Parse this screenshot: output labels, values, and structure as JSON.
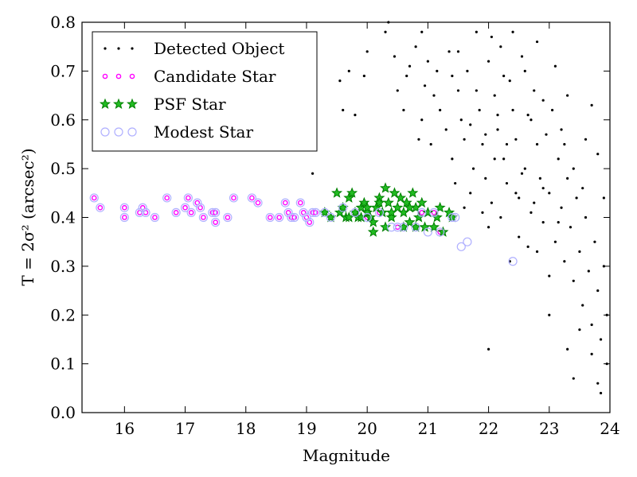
{
  "chart_data": {
    "type": "scatter",
    "xlabel": "Magnitude",
    "ylabel": "T = 2σ² (arcsec²)",
    "xlim": [
      15.3,
      24.0
    ],
    "ylim": [
      0.0,
      0.8
    ],
    "xticks": [
      "16",
      "17",
      "18",
      "19",
      "20",
      "21",
      "22",
      "23",
      "24"
    ],
    "yticks": [
      "0.0",
      "0.1",
      "0.2",
      "0.3",
      "0.4",
      "0.5",
      "0.6",
      "0.7",
      "0.8"
    ],
    "grid": false,
    "legend_position": "top-left",
    "series": [
      {
        "name": "Detected Object",
        "marker": "dot",
        "color": "#000000",
        "points": [
          [
            19.1,
            0.49
          ],
          [
            19.55,
            0.68
          ],
          [
            19.7,
            0.7
          ],
          [
            19.8,
            0.61
          ],
          [
            19.95,
            0.69
          ],
          [
            20.0,
            0.74
          ],
          [
            19.6,
            0.62
          ],
          [
            20.3,
            0.78
          ],
          [
            20.35,
            0.8
          ],
          [
            20.45,
            0.73
          ],
          [
            20.5,
            0.66
          ],
          [
            20.6,
            0.62
          ],
          [
            20.65,
            0.69
          ],
          [
            20.7,
            0.71
          ],
          [
            20.8,
            0.75
          ],
          [
            20.85,
            0.56
          ],
          [
            20.9,
            0.6
          ],
          [
            20.95,
            0.67
          ],
          [
            21.0,
            0.72
          ],
          [
            21.05,
            0.55
          ],
          [
            21.1,
            0.65
          ],
          [
            21.15,
            0.7
          ],
          [
            21.2,
            0.62
          ],
          [
            21.3,
            0.58
          ],
          [
            21.35,
            0.74
          ],
          [
            21.4,
            0.52
          ],
          [
            21.45,
            0.47
          ],
          [
            21.5,
            0.66
          ],
          [
            21.55,
            0.6
          ],
          [
            21.6,
            0.56
          ],
          [
            21.65,
            0.7
          ],
          [
            21.7,
            0.45
          ],
          [
            21.75,
            0.5
          ],
          [
            21.8,
            0.78
          ],
          [
            21.85,
            0.62
          ],
          [
            21.9,
            0.55
          ],
          [
            21.95,
            0.48
          ],
          [
            22.0,
            0.72
          ],
          [
            22.05,
            0.43
          ],
          [
            22.1,
            0.65
          ],
          [
            22.15,
            0.58
          ],
          [
            22.2,
            0.75
          ],
          [
            22.25,
            0.52
          ],
          [
            22.3,
            0.47
          ],
          [
            22.35,
            0.68
          ],
          [
            22.4,
            0.62
          ],
          [
            22.45,
            0.56
          ],
          [
            22.5,
            0.44
          ],
          [
            22.55,
            0.73
          ],
          [
            22.6,
            0.5
          ],
          [
            22.65,
            0.61
          ],
          [
            22.7,
            0.41
          ],
          [
            22.75,
            0.66
          ],
          [
            22.8,
            0.55
          ],
          [
            22.85,
            0.48
          ],
          [
            22.9,
            0.39
          ],
          [
            22.95,
            0.57
          ],
          [
            23.0,
            0.45
          ],
          [
            23.05,
            0.62
          ],
          [
            23.1,
            0.35
          ],
          [
            23.15,
            0.52
          ],
          [
            23.2,
            0.42
          ],
          [
            23.25,
            0.31
          ],
          [
            23.3,
            0.48
          ],
          [
            23.35,
            0.38
          ],
          [
            23.4,
            0.27
          ],
          [
            23.45,
            0.44
          ],
          [
            23.5,
            0.33
          ],
          [
            23.55,
            0.22
          ],
          [
            23.6,
            0.4
          ],
          [
            23.65,
            0.29
          ],
          [
            23.7,
            0.18
          ],
          [
            23.75,
            0.35
          ],
          [
            23.8,
            0.25
          ],
          [
            23.85,
            0.15
          ],
          [
            23.9,
            0.3
          ],
          [
            23.95,
            0.2
          ],
          [
            22.0,
            0.13
          ],
          [
            23.3,
            0.13
          ],
          [
            23.4,
            0.07
          ],
          [
            23.8,
            0.06
          ],
          [
            23.85,
            0.04
          ],
          [
            23.95,
            0.1
          ],
          [
            23.7,
            0.12
          ],
          [
            23.0,
            0.2
          ],
          [
            23.5,
            0.17
          ],
          [
            22.3,
            0.55
          ],
          [
            22.6,
            0.7
          ],
          [
            22.1,
            0.52
          ],
          [
            22.4,
            0.78
          ],
          [
            22.7,
            0.6
          ],
          [
            22.2,
            0.4
          ],
          [
            22.5,
            0.36
          ],
          [
            22.8,
            0.33
          ],
          [
            23.0,
            0.28
          ],
          [
            22.9,
            0.64
          ],
          [
            23.2,
            0.58
          ],
          [
            23.4,
            0.5
          ],
          [
            23.6,
            0.56
          ],
          [
            23.9,
            0.44
          ],
          [
            23.7,
            0.63
          ],
          [
            23.8,
            0.53
          ],
          [
            21.9,
            0.41
          ],
          [
            21.6,
            0.42
          ],
          [
            22.0,
            0.38
          ],
          [
            22.35,
            0.31
          ],
          [
            22.65,
            0.34
          ],
          [
            21.8,
            0.66
          ],
          [
            21.5,
            0.74
          ],
          [
            20.9,
            0.78
          ],
          [
            22.8,
            0.76
          ],
          [
            23.1,
            0.71
          ],
          [
            23.3,
            0.65
          ],
          [
            22.15,
            0.61
          ],
          [
            22.55,
            0.49
          ],
          [
            22.45,
            0.45
          ],
          [
            21.7,
            0.59
          ],
          [
            22.9,
            0.46
          ],
          [
            23.15,
            0.39
          ],
          [
            22.25,
            0.69
          ],
          [
            21.95,
            0.57
          ],
          [
            22.75,
            0.43
          ],
          [
            23.55,
            0.46
          ],
          [
            23.25,
            0.55
          ],
          [
            22.05,
            0.77
          ],
          [
            21.4,
            0.69
          ]
        ]
      },
      {
        "name": "Candidate Star",
        "marker": "circle",
        "color": "#ff00ff",
        "points": [
          [
            15.5,
            0.44
          ],
          [
            15.6,
            0.42
          ],
          [
            16.0,
            0.42
          ],
          [
            16.0,
            0.4
          ],
          [
            16.25,
            0.41
          ],
          [
            16.3,
            0.42
          ],
          [
            16.35,
            0.41
          ],
          [
            16.5,
            0.4
          ],
          [
            16.7,
            0.44
          ],
          [
            16.85,
            0.41
          ],
          [
            17.0,
            0.42
          ],
          [
            17.05,
            0.44
          ],
          [
            17.1,
            0.41
          ],
          [
            17.2,
            0.43
          ],
          [
            17.25,
            0.42
          ],
          [
            17.3,
            0.4
          ],
          [
            17.45,
            0.41
          ],
          [
            17.5,
            0.41
          ],
          [
            17.5,
            0.39
          ],
          [
            17.7,
            0.4
          ],
          [
            17.8,
            0.44
          ],
          [
            18.1,
            0.44
          ],
          [
            18.2,
            0.43
          ],
          [
            18.4,
            0.4
          ],
          [
            18.55,
            0.4
          ],
          [
            18.65,
            0.43
          ],
          [
            18.7,
            0.41
          ],
          [
            18.75,
            0.4
          ],
          [
            18.8,
            0.4
          ],
          [
            18.9,
            0.43
          ],
          [
            18.95,
            0.41
          ],
          [
            19.0,
            0.4
          ],
          [
            19.05,
            0.39
          ],
          [
            19.1,
            0.41
          ],
          [
            19.15,
            0.41
          ],
          [
            20.0,
            0.4
          ],
          [
            20.2,
            0.41
          ],
          [
            20.5,
            0.38
          ],
          [
            20.9,
            0.41
          ],
          [
            21.1,
            0.41
          ],
          [
            21.2,
            0.37
          ]
        ]
      },
      {
        "name": "PSF Star",
        "marker": "star",
        "color": "#008000",
        "points": [
          [
            19.3,
            0.41
          ],
          [
            19.4,
            0.4
          ],
          [
            19.5,
            0.45
          ],
          [
            19.55,
            0.41
          ],
          [
            19.6,
            0.42
          ],
          [
            19.65,
            0.4
          ],
          [
            19.7,
            0.44
          ],
          [
            19.75,
            0.45
          ],
          [
            19.8,
            0.41
          ],
          [
            19.85,
            0.4
          ],
          [
            19.9,
            0.42
          ],
          [
            19.95,
            0.43
          ],
          [
            20.0,
            0.41
          ],
          [
            20.05,
            0.4
          ],
          [
            20.1,
            0.39
          ],
          [
            20.15,
            0.42
          ],
          [
            20.2,
            0.44
          ],
          [
            20.25,
            0.41
          ],
          [
            20.3,
            0.46
          ],
          [
            20.35,
            0.43
          ],
          [
            20.4,
            0.4
          ],
          [
            20.45,
            0.45
          ],
          [
            20.5,
            0.42
          ],
          [
            20.55,
            0.44
          ],
          [
            20.6,
            0.41
          ],
          [
            20.65,
            0.43
          ],
          [
            20.7,
            0.39
          ],
          [
            20.75,
            0.45
          ],
          [
            20.8,
            0.42
          ],
          [
            20.85,
            0.4
          ],
          [
            20.9,
            0.43
          ],
          [
            20.95,
            0.38
          ],
          [
            21.0,
            0.41
          ],
          [
            21.1,
            0.38
          ],
          [
            21.15,
            0.4
          ],
          [
            21.2,
            0.42
          ],
          [
            21.25,
            0.37
          ],
          [
            21.35,
            0.41
          ],
          [
            21.4,
            0.4
          ],
          [
            20.1,
            0.37
          ],
          [
            20.3,
            0.38
          ],
          [
            20.6,
            0.38
          ],
          [
            19.9,
            0.4
          ],
          [
            20.4,
            0.41
          ],
          [
            20.7,
            0.42
          ],
          [
            20.2,
            0.43
          ],
          [
            19.7,
            0.4
          ],
          [
            20.8,
            0.38
          ],
          [
            20.0,
            0.42
          ]
        ]
      },
      {
        "name": "Modest Star",
        "marker": "open-circle",
        "color": "#b0b0ff",
        "points": [
          [
            15.5,
            0.44
          ],
          [
            15.6,
            0.42
          ],
          [
            16.0,
            0.42
          ],
          [
            16.0,
            0.4
          ],
          [
            16.25,
            0.41
          ],
          [
            16.3,
            0.42
          ],
          [
            16.35,
            0.41
          ],
          [
            16.5,
            0.4
          ],
          [
            16.7,
            0.44
          ],
          [
            16.85,
            0.41
          ],
          [
            17.0,
            0.42
          ],
          [
            17.05,
            0.44
          ],
          [
            17.1,
            0.41
          ],
          [
            17.2,
            0.43
          ],
          [
            17.25,
            0.42
          ],
          [
            17.3,
            0.4
          ],
          [
            17.45,
            0.41
          ],
          [
            17.5,
            0.41
          ],
          [
            17.5,
            0.39
          ],
          [
            17.7,
            0.4
          ],
          [
            17.8,
            0.44
          ],
          [
            18.1,
            0.44
          ],
          [
            18.2,
            0.43
          ],
          [
            18.4,
            0.4
          ],
          [
            18.55,
            0.4
          ],
          [
            18.65,
            0.43
          ],
          [
            18.7,
            0.41
          ],
          [
            18.75,
            0.4
          ],
          [
            18.8,
            0.4
          ],
          [
            18.9,
            0.43
          ],
          [
            18.95,
            0.41
          ],
          [
            19.0,
            0.4
          ],
          [
            19.05,
            0.39
          ],
          [
            19.1,
            0.41
          ],
          [
            19.15,
            0.41
          ],
          [
            19.3,
            0.41
          ],
          [
            19.4,
            0.4
          ],
          [
            19.6,
            0.42
          ],
          [
            19.8,
            0.41
          ],
          [
            20.0,
            0.4
          ],
          [
            20.2,
            0.41
          ],
          [
            20.4,
            0.38
          ],
          [
            20.5,
            0.38
          ],
          [
            20.6,
            0.38
          ],
          [
            20.8,
            0.38
          ],
          [
            20.9,
            0.41
          ],
          [
            21.0,
            0.37
          ],
          [
            21.1,
            0.41
          ],
          [
            21.2,
            0.37
          ],
          [
            21.4,
            0.4
          ],
          [
            21.45,
            0.4
          ],
          [
            21.55,
            0.34
          ],
          [
            21.65,
            0.35
          ],
          [
            22.4,
            0.31
          ]
        ]
      }
    ]
  }
}
